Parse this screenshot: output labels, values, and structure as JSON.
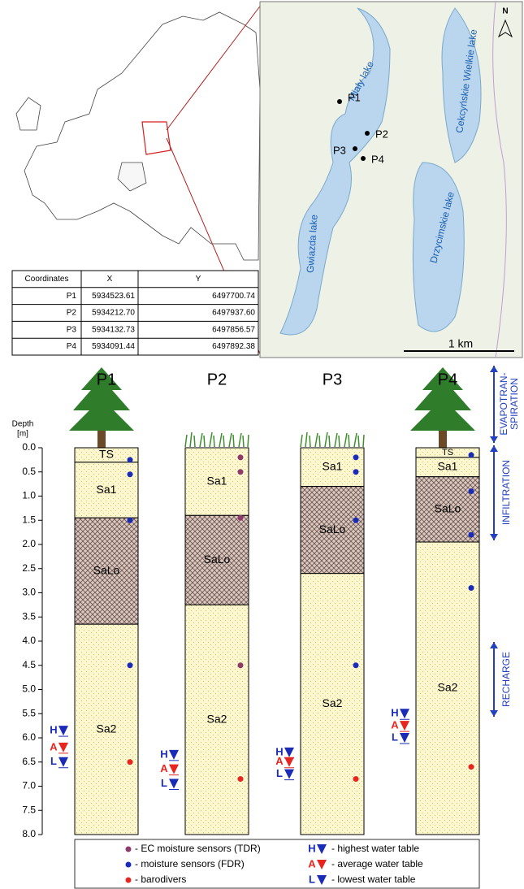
{
  "map": {
    "north": "N",
    "lakes": [
      "Miały lake",
      "Cekcyńskie Wielkie lake",
      "Gwiazda lake",
      "Drzycimskie lake"
    ],
    "points": [
      "P1",
      "P2",
      "P3",
      "P4"
    ],
    "scale": "1 km"
  },
  "table": {
    "header": [
      "Coordinates",
      "X",
      "Y"
    ],
    "rows": [
      [
        "P1",
        "5934523.61",
        "6497700.74"
      ],
      [
        "P2",
        "5934212.70",
        "6497937.60"
      ],
      [
        "P3",
        "5934132.73",
        "6497856.57"
      ],
      [
        "P4",
        "5934091.44",
        "6497892.38"
      ]
    ]
  },
  "depth_axis": {
    "label": [
      "Depth",
      "[m]"
    ],
    "range": [
      0,
      8
    ],
    "ticks": [
      {
        "value": 0,
        "label": "0.0"
      },
      {
        "value": 0.5,
        "label": "0.5"
      },
      {
        "value": 1,
        "label": "1.0"
      },
      {
        "value": 1.5,
        "label": "1.5"
      },
      {
        "value": 2,
        "label": "2.0"
      },
      {
        "value": 2.5,
        "label": "2.5"
      },
      {
        "value": 3,
        "label": "3.0"
      },
      {
        "value": 3.5,
        "label": "3.5"
      },
      {
        "value": 4,
        "label": "4.0"
      },
      {
        "value": 4.5,
        "label": "4.5"
      },
      {
        "value": 5,
        "label": "5.0"
      },
      {
        "value": 5.5,
        "label": "5.5"
      },
      {
        "value": 6,
        "label": "6.0"
      },
      {
        "value": 6.5,
        "label": "6.5"
      },
      {
        "value": 7,
        "label": "7.0"
      },
      {
        "value": 7.5,
        "label": "7.5"
      },
      {
        "value": 8,
        "label": "8.0"
      }
    ]
  },
  "profiles": [
    {
      "name": "P1",
      "layers": [
        {
          "name": "TS",
          "top": 0,
          "bottom": 0.3
        },
        {
          "name": "Sa1",
          "top": 0.3,
          "bottom": 1.45
        },
        {
          "name": "SaLo",
          "top": 1.45,
          "bottom": 3.65
        },
        {
          "name": "Sa2",
          "top": 3.65,
          "bottom": 8
        }
      ],
      "sensors": [
        {
          "depth": 0.25,
          "color": "#1a2bb8"
        },
        {
          "depth": 0.55,
          "color": "#1a2bb8"
        },
        {
          "depth": 1.5,
          "color": "#1a2bb8"
        },
        {
          "depth": 4.5,
          "color": "#1a2bb8"
        },
        {
          "depth": 6.5,
          "color": "#e8251f"
        }
      ],
      "water_table": [
        {
          "label": "H",
          "depth": 5.85,
          "color": "#1a2bb8"
        },
        {
          "label": "A",
          "depth": 6.2,
          "color": "#e8251f"
        },
        {
          "label": "L",
          "depth": 6.5,
          "color": "#1a2bb8"
        }
      ]
    },
    {
      "name": "P2",
      "layers": [
        {
          "name": "Sa1",
          "top": 0,
          "bottom": 1.4
        },
        {
          "name": "SaLo",
          "top": 1.4,
          "bottom": 3.25
        },
        {
          "name": "Sa2",
          "top": 3.25,
          "bottom": 8
        }
      ],
      "sensors": [
        {
          "depth": 0.2,
          "color": "#8e3a6a"
        },
        {
          "depth": 0.5,
          "color": "#8e3a6a"
        },
        {
          "depth": 1.45,
          "color": "#8e3a6a"
        },
        {
          "depth": 4.5,
          "color": "#8e3a6a"
        },
        {
          "depth": 6.85,
          "color": "#e8251f"
        }
      ],
      "water_table": [
        {
          "label": "H",
          "depth": 6.35,
          "color": "#1a2bb8"
        },
        {
          "label": "A",
          "depth": 6.65,
          "color": "#e8251f"
        },
        {
          "label": "L",
          "depth": 6.95,
          "color": "#1a2bb8"
        }
      ]
    },
    {
      "name": "P3",
      "layers": [
        {
          "name": "Sa1",
          "top": 0,
          "bottom": 0.8
        },
        {
          "name": "SaLo",
          "top": 0.8,
          "bottom": 2.6
        },
        {
          "name": "Sa2",
          "top": 2.6,
          "bottom": 8
        }
      ],
      "sensors": [
        {
          "depth": 0.2,
          "color": "#1a2bb8"
        },
        {
          "depth": 0.5,
          "color": "#1a2bb8"
        },
        {
          "depth": 1.5,
          "color": "#1a2bb8"
        },
        {
          "depth": 4.5,
          "color": "#1a2bb8"
        },
        {
          "depth": 6.85,
          "color": "#e8251f"
        }
      ],
      "water_table": [
        {
          "label": "H",
          "depth": 6.3,
          "color": "#1a2bb8"
        },
        {
          "label": "A",
          "depth": 6.5,
          "color": "#e8251f"
        },
        {
          "label": "L",
          "depth": 6.75,
          "color": "#1a2bb8"
        }
      ]
    },
    {
      "name": "P4",
      "layers": [
        {
          "name": "TS",
          "top": 0,
          "bottom": 0.2
        },
        {
          "name": "Sa1",
          "top": 0.2,
          "bottom": 0.6
        },
        {
          "name": "SaLo",
          "top": 0.6,
          "bottom": 1.95
        },
        {
          "name": "Sa2",
          "top": 1.95,
          "bottom": 8
        }
      ],
      "sensors": [
        {
          "depth": 0.15,
          "color": "#1a2bb8"
        },
        {
          "depth": 0.9,
          "color": "#1a2bb8"
        },
        {
          "depth": 1.8,
          "color": "#1a2bb8"
        },
        {
          "depth": 2.9,
          "color": "#1a2bb8"
        },
        {
          "depth": 6.6,
          "color": "#e8251f"
        }
      ],
      "water_table": [
        {
          "label": "H",
          "depth": 5.5,
          "color": "#1a2bb8"
        },
        {
          "label": "A",
          "depth": 5.75,
          "color": "#e8251f"
        },
        {
          "label": "L",
          "depth": 6.0,
          "color": "#1a2bb8"
        }
      ]
    }
  ],
  "processes": {
    "evapotranspiration": [
      "EVAPOTRAN-",
      "SPIRATION"
    ],
    "infiltration": "INFILTRATION",
    "recharge": "RECHARGE"
  },
  "legend": {
    "items": [
      {
        "text": "- EC moisture sensors (TDR)",
        "color": "#8e3a6a"
      },
      {
        "text": "- moisture sensors (FDR)",
        "color": "#1a2bb8"
      },
      {
        "text": "- barodivers",
        "color": "#e8251f"
      }
    ],
    "water": [
      {
        "letter": "H",
        "text": "- highest water table",
        "color": "#1a2bb8"
      },
      {
        "letter": "A",
        "text": "- average water table",
        "color": "#e8251f"
      },
      {
        "letter": "L",
        "text": "- lowest water table",
        "color": "#1a2bb8"
      }
    ]
  }
}
